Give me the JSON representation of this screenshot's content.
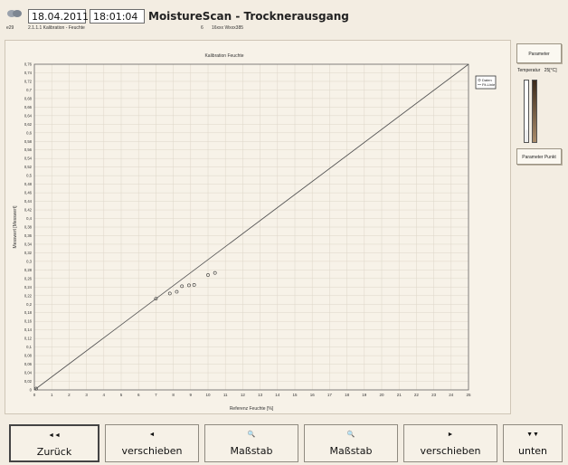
{
  "header": {
    "date": "18.04.2011",
    "time": "18:01:04",
    "title": "MoistureScan - Trocknerausgang",
    "sub_left": "e29",
    "sub_mid": "2.1.1.1 Kalibration - Feuchte",
    "sub_right_num": "6",
    "sub_right": "16xxx Wxxx385"
  },
  "chart_data": {
    "type": "scatter",
    "title": "Kalibration Feuchte",
    "xlabel": "Referenz Feuchte [%]",
    "ylabel": "Messwert [Messwert]",
    "xlim": [
      0,
      25
    ],
    "ylim": [
      0,
      0.76
    ],
    "x_ticks": [
      "0",
      "1",
      "2",
      "3",
      "4",
      "5",
      "6",
      "7",
      "8",
      "9",
      "10",
      "11",
      "12",
      "13",
      "14",
      "15",
      "16",
      "17",
      "18",
      "19",
      "20",
      "21",
      "22",
      "23",
      "24",
      "25"
    ],
    "y_ticks": [
      "0",
      "0,02",
      "0,04",
      "0,06",
      "0,08",
      "0,1",
      "0,12",
      "0,14",
      "0,16",
      "0,18",
      "0,2",
      "0,22",
      "0,24",
      "0,26",
      "0,28",
      "0,3",
      "0,32",
      "0,34",
      "0,36",
      "0,38",
      "0,4",
      "0,42",
      "0,44",
      "0,46",
      "0,48",
      "0,5",
      "0,52",
      "0,54",
      "0,56",
      "0,58",
      "0,6",
      "0,62",
      "0,64",
      "0,66",
      "0,68",
      "0,7",
      "0,72",
      "0,74",
      "0,76"
    ],
    "grid": true,
    "legend_position": "top-right",
    "legend": [
      "Daten",
      "Fit-Linie"
    ],
    "series": [
      {
        "name": "Daten",
        "mode": "markers",
        "x": [
          0.1,
          7.0,
          7.8,
          8.2,
          8.5,
          8.9,
          9.2,
          10.0,
          10.4
        ],
        "y": [
          0.003,
          0.213,
          0.225,
          0.229,
          0.242,
          0.244,
          0.245,
          0.268,
          0.273
        ]
      },
      {
        "name": "Fit-Linie",
        "mode": "line",
        "x": [
          0,
          25
        ],
        "y": [
          0,
          0.76
        ]
      }
    ]
  },
  "side": {
    "button1": "Parameter",
    "temp_label": "Temperatur",
    "temp_value": "25[°C]",
    "button2": "Parameter Punkt"
  },
  "buttons": [
    {
      "icon": "back-icon",
      "glyph": "◄◄",
      "label": "Zurück"
    },
    {
      "icon": "arrow-left-icon",
      "glyph": "◄",
      "label": "verschieben"
    },
    {
      "icon": "zoom-icon",
      "glyph": "🔍",
      "label": "Maßstab"
    },
    {
      "icon": "zoom-icon",
      "glyph": "🔍",
      "label": "Maßstab"
    },
    {
      "icon": "arrow-right-icon",
      "glyph": "►",
      "label": "verschieben"
    },
    {
      "icon": "down-icon",
      "glyph": "▼▼",
      "label": "unten"
    }
  ]
}
